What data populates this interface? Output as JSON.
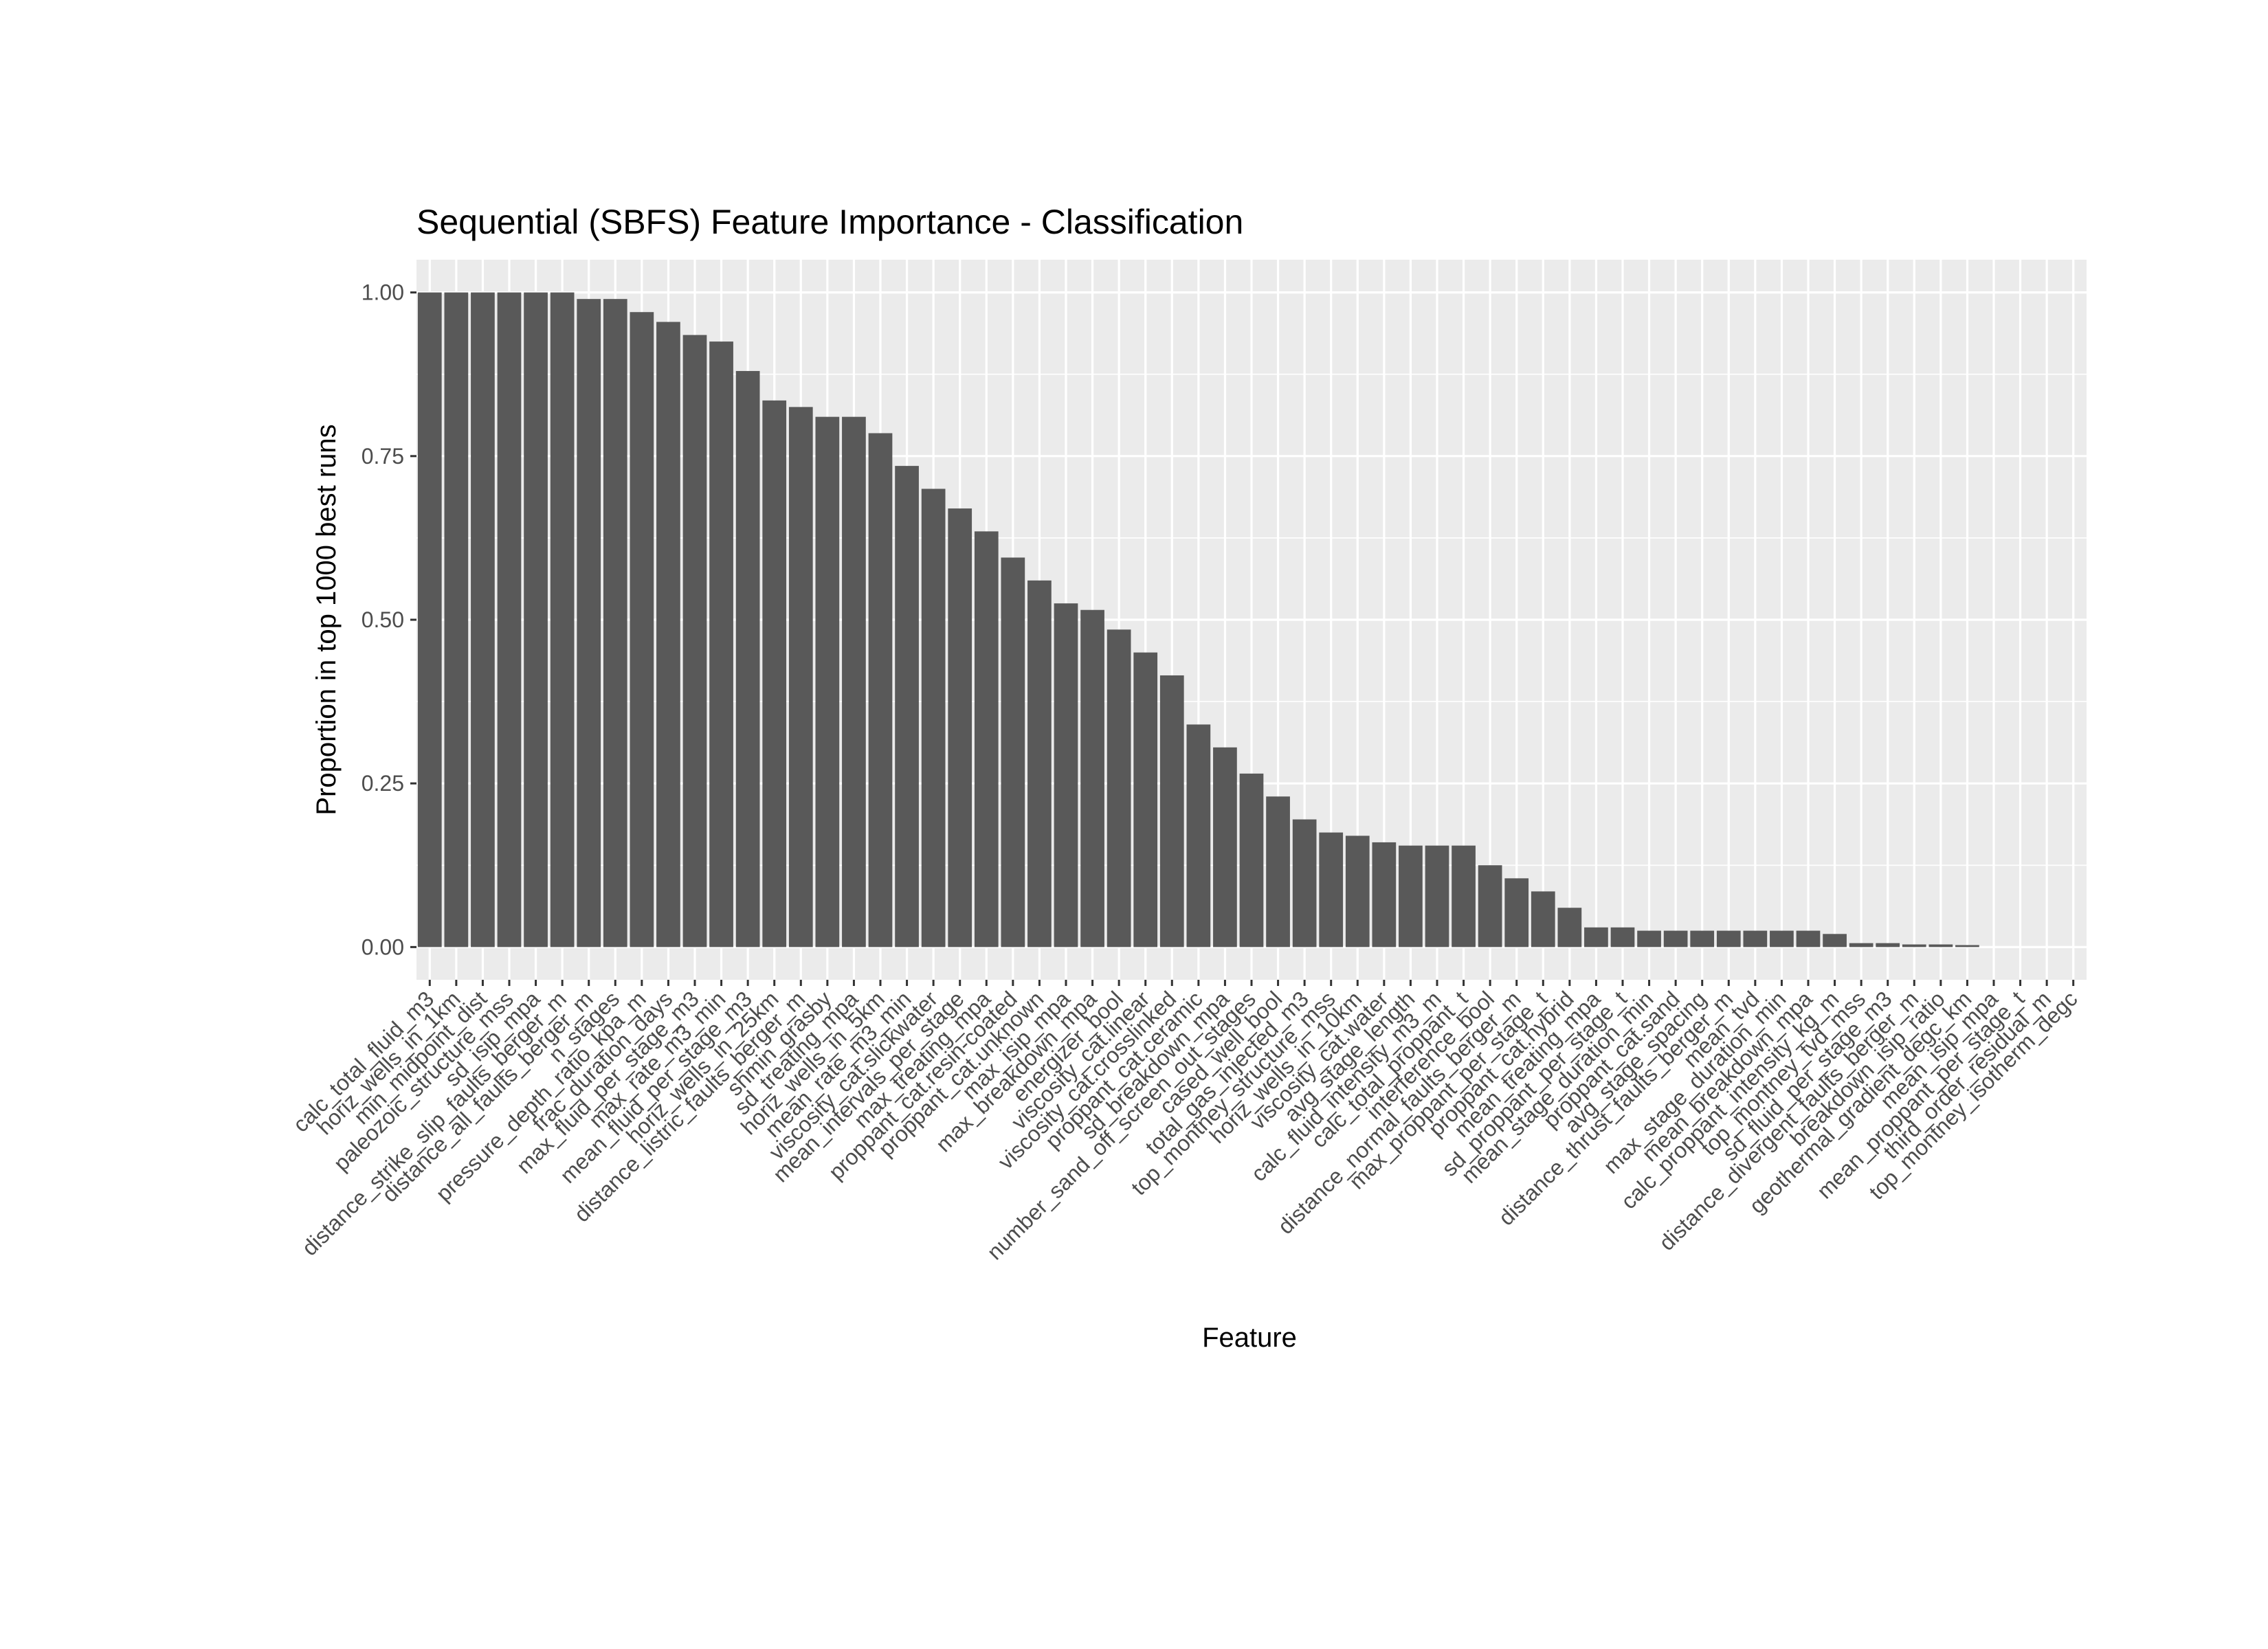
{
  "chart_data": {
    "type": "bar",
    "title": "Sequential (SBFS) Feature Importance - Classification",
    "xlabel": "Feature",
    "ylabel": "Proportion in top 1000 best runs",
    "ylim": [
      -0.05,
      1.05
    ],
    "yticks": [
      0.0,
      0.25,
      0.5,
      0.75,
      1.0
    ],
    "ytick_labels": [
      "0.00",
      "0.25",
      "0.50",
      "0.75",
      "1.00"
    ],
    "grid": true,
    "legend": "none",
    "bar_color": "#595959",
    "panel_color": "#ebebeb",
    "categories": [
      "calc_total_fluid_m3",
      "horiz_wells_in_1km",
      "min_midpoint_dist",
      "paleozoic_structure_mss",
      "sd_isip_mpa",
      "distance_strike_slip_faults_berger_m",
      "distance_all_faults_berger_m",
      "n_stages",
      "pressure_depth_ratio_kpa_m",
      "frac_duration_days",
      "max_fluid_per_stage_m3",
      "max_rate_m3_min",
      "mean_fluid_per_stage_m3",
      "horiz_wells_in_25km",
      "distance_listric_faults_berger_m",
      "shmin_grasby",
      "sd_treating_mpa",
      "horiz_wells_in_5km",
      "mean_rate_m3_min",
      "viscosity_cat.slickwater",
      "mean_intervals_per_stage",
      "max_treating_mpa",
      "proppant_cat.resin-coated",
      "proppant_cat.unknown",
      "max_isip_mpa",
      "max_breakdown_mpa",
      "energizer_bool",
      "viscosity_cat.linear",
      "viscosity_cat.crosslinked",
      "proppant_cat.ceramic",
      "sd_breakdown_mpa",
      "number_sand_off_screen_out_stages",
      "cased_well_bool",
      "total_gas_injected_m3",
      "top_montney_structure_mss",
      "horiz_wells_in_10km",
      "viscosity_cat.water",
      "avg_stage_length",
      "calc_fluid_intensity_m3_m",
      "calc_total_proppant_t",
      "interference_bool",
      "distance_normal_faults_berger_m",
      "max_proppant_per_stage_t",
      "proppant_cat.hybrid",
      "mean_treating_mpa",
      "sd_proppant_per_stage_t",
      "mean_stage_duration_min",
      "proppant_cat.sand",
      "avg_stage_spacing",
      "distance_thrust_faults_berger_m",
      "mean_tvd",
      "max_stage_duration_min",
      "mean_breakdown_mpa",
      "calc_proppant_intensity_kg_m",
      "top_montney_tvd_mss",
      "sd_fluid_per_stage_m3",
      "distance_divergent_faults_berger_m",
      "breakdown_isip_ratio",
      "geothermal_gradient_degc_km",
      "mean_isip_mpa",
      "mean_proppant_per_stage_t",
      "third_order_residual_m",
      "top_montney_isotherm_degc"
    ],
    "values": [
      1.0,
      1.0,
      1.0,
      1.0,
      1.0,
      1.0,
      0.99,
      0.99,
      0.97,
      0.955,
      0.935,
      0.925,
      0.88,
      0.835,
      0.825,
      0.81,
      0.81,
      0.785,
      0.735,
      0.7,
      0.67,
      0.635,
      0.595,
      0.56,
      0.525,
      0.515,
      0.485,
      0.45,
      0.415,
      0.34,
      0.305,
      0.265,
      0.23,
      0.195,
      0.175,
      0.17,
      0.16,
      0.155,
      0.155,
      0.155,
      0.125,
      0.105,
      0.085,
      0.06,
      0.03,
      0.03,
      0.025,
      0.025,
      0.025,
      0.025,
      0.025,
      0.025,
      0.025,
      0.02,
      0.006,
      0.006,
      0.004,
      0.004,
      0.003,
      0.0,
      0.0,
      0.0,
      0.0
    ]
  }
}
